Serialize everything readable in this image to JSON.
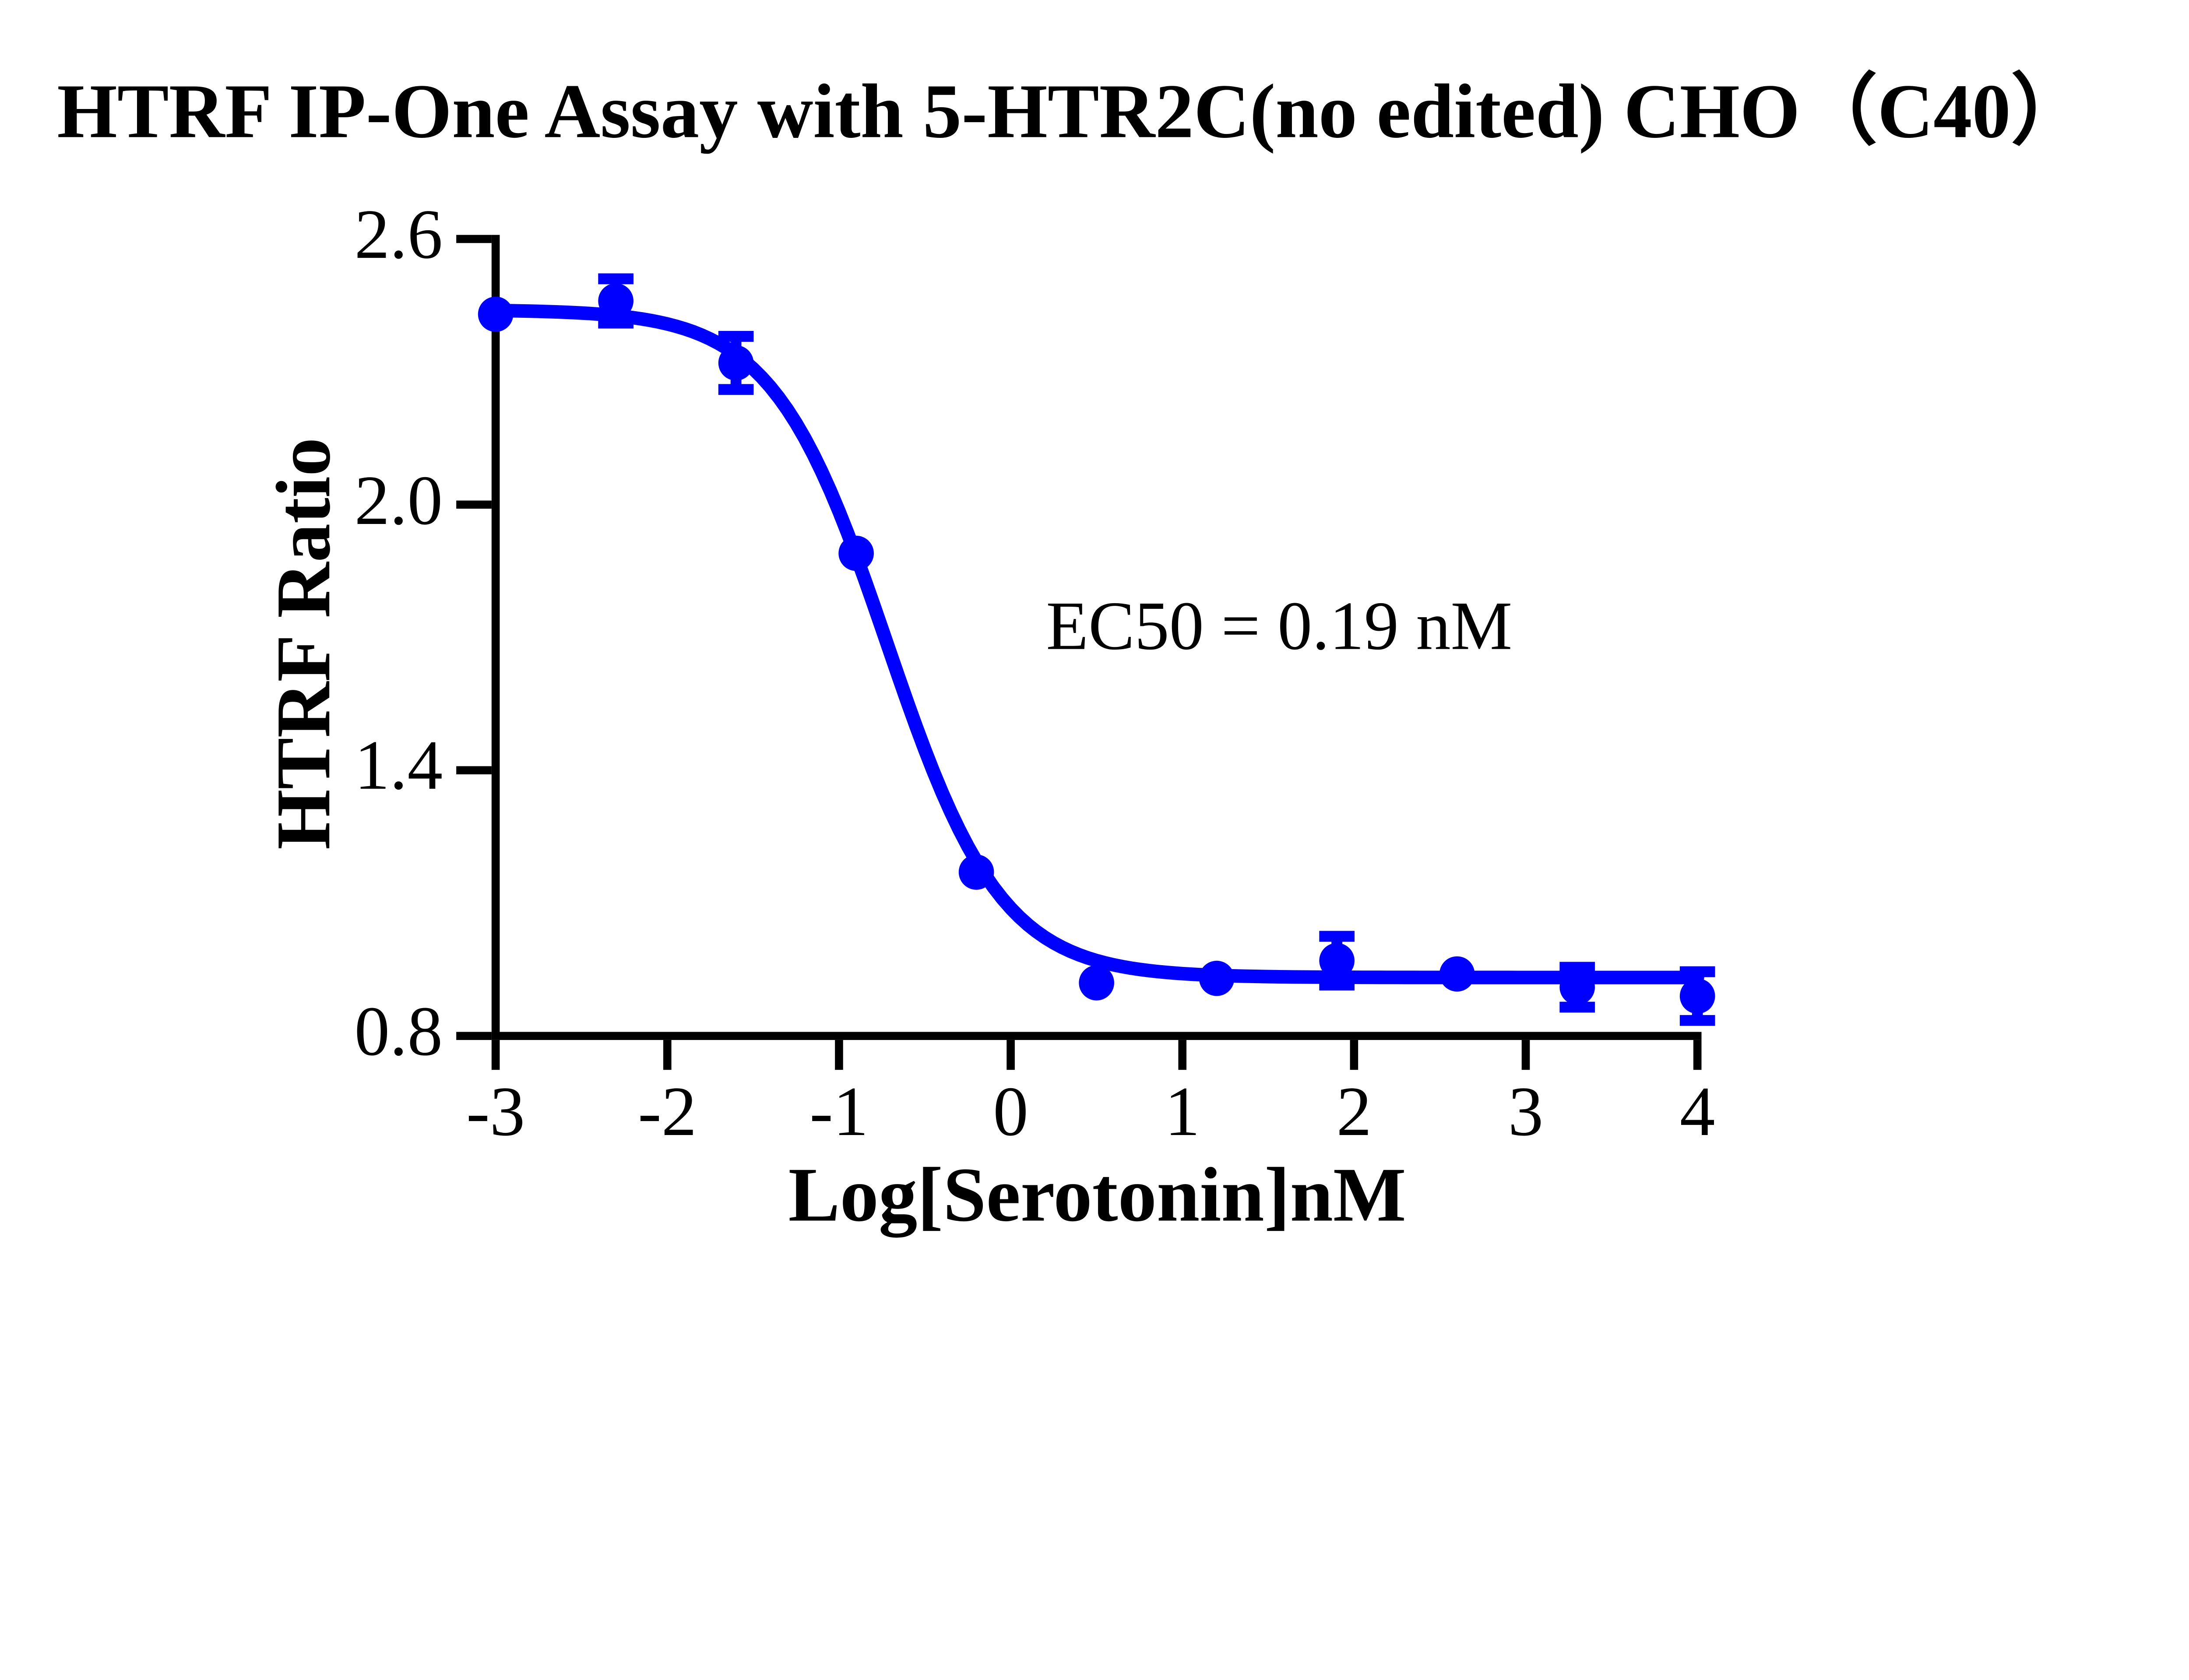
{
  "page": {
    "background": "#ffffff"
  },
  "chart_data": {
    "type": "scatter",
    "title": "HTRF IP-One Assay with 5-HTR2C(no edited) CHO（C40）",
    "xlabel": "Log[Serotonin]nM",
    "ylabel": "HTRF Ratio",
    "annotation": "EC50 = 0.19 nM",
    "ec50_nM": 0.19,
    "grid": false,
    "legend_position": "none",
    "axis_color": "#000000",
    "series_color": "#0000FF",
    "x_range": [
      -3,
      4
    ],
    "y_range": [
      0.8,
      2.6
    ],
    "x_ticks": [
      {
        "label": "-3",
        "value": -3
      },
      {
        "label": "-2",
        "value": -2
      },
      {
        "label": "-1",
        "value": -1
      },
      {
        "label": "0",
        "value": 0
      },
      {
        "label": "1",
        "value": 1
      },
      {
        "label": "2",
        "value": 2
      },
      {
        "label": "3",
        "value": 3
      },
      {
        "label": "4",
        "value": 4
      }
    ],
    "y_ticks": [
      {
        "label": "2.6",
        "value": 2.6
      },
      {
        "label": "2.0",
        "value": 2.0
      },
      {
        "label": "1.4",
        "value": 1.4
      },
      {
        "label": "0.8",
        "value": 0.8
      }
    ],
    "series": [
      {
        "name": "Serotonin",
        "marker": "circle",
        "points": [
          {
            "x": -3.0,
            "y": 2.43,
            "err": 0
          },
          {
            "x": -2.3,
            "y": 2.46,
            "err": 0.05
          },
          {
            "x": -1.6,
            "y": 2.32,
            "err": 0.06
          },
          {
            "x": -0.9,
            "y": 1.89,
            "err": 0
          },
          {
            "x": -0.2,
            "y": 1.17,
            "err": 0
          },
          {
            "x": 0.5,
            "y": 0.92,
            "err": 0
          },
          {
            "x": 1.2,
            "y": 0.93,
            "err": 0
          },
          {
            "x": 1.9,
            "y": 0.97,
            "err": 0.055
          },
          {
            "x": 2.6,
            "y": 0.94,
            "err": 0
          },
          {
            "x": 3.3,
            "y": 0.91,
            "err": 0.045
          },
          {
            "x": 4.0,
            "y": 0.89,
            "err": 0.055
          }
        ]
      }
    ],
    "fit_curve": {
      "model": "4PL",
      "top": 2.44,
      "bottom": 0.932,
      "log_ec50": -0.72,
      "hill": 1.3
    }
  }
}
